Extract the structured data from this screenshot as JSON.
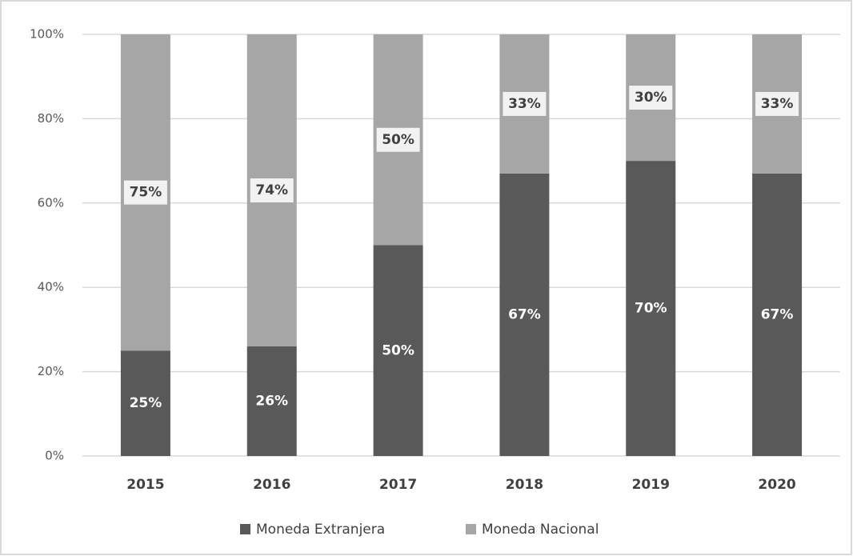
{
  "chart_data": {
    "type": "stacked_bar",
    "categories": [
      "2015",
      "2016",
      "2017",
      "2018",
      "2019",
      "2020"
    ],
    "series": [
      {
        "name": "Moneda Extranjera",
        "color": "#595959",
        "values": [
          25,
          26,
          50,
          67,
          70,
          67
        ],
        "value_labels": [
          "25%",
          "26%",
          "50%",
          "67%",
          "70%",
          "67%"
        ]
      },
      {
        "name": "Moneda Nacional",
        "color": "#a6a6a6",
        "values": [
          75,
          74,
          50,
          33,
          30,
          33
        ],
        "value_labels": [
          "75%",
          "74%",
          "50%",
          "33%",
          "30%",
          "33%"
        ]
      }
    ],
    "ylim": [
      0,
      100
    ],
    "yticks": [
      {
        "value": 0,
        "label": "0%"
      },
      {
        "value": 20,
        "label": "20%"
      },
      {
        "value": 40,
        "label": "40%"
      },
      {
        "value": 60,
        "label": "60%"
      },
      {
        "value": 80,
        "label": "80%"
      },
      {
        "value": 100,
        "label": "100%"
      }
    ],
    "grid": true,
    "legend": "bottom"
  }
}
